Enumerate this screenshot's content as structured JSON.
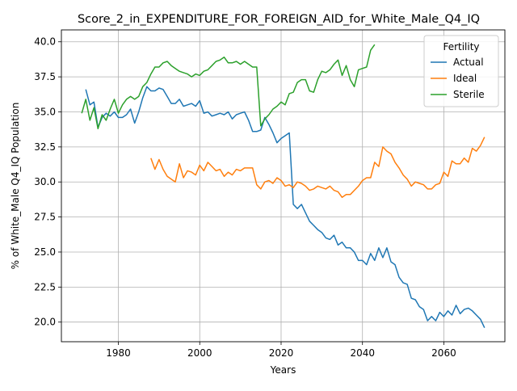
{
  "chart_data": {
    "type": "line",
    "title": "Score_2_in_EXPENDITURE_FOR_FOREIGN_AID_for_White_Male_Q4_IQ",
    "xlabel": "Years",
    "ylabel": "% of White_Male Q4_IQ Population",
    "xlim": [
      1966,
      2075
    ],
    "ylim": [
      18.6,
      40.85
    ],
    "grid": true,
    "legend": {
      "title": "Fertility",
      "placement": "top-right"
    },
    "x_ticks": [
      1980,
      2000,
      2020,
      2040,
      2060
    ],
    "x_tick_labels": [
      "1980",
      "2000",
      "2020",
      "2040",
      "2060"
    ],
    "y_ticks": [
      20.0,
      22.5,
      25.0,
      27.5,
      30.0,
      32.5,
      35.0,
      37.5,
      40.0
    ],
    "y_tick_labels": [
      "20.0",
      "22.5",
      "25.0",
      "27.5",
      "30.0",
      "32.5",
      "35.0",
      "37.5",
      "40.0"
    ],
    "series": [
      {
        "name": "Actual",
        "color": "#1f77b4",
        "x": [
          1972,
          1973,
          1974,
          1975,
          1976,
          1977,
          1978,
          1979,
          1980,
          1981,
          1982,
          1983,
          1984,
          1985,
          1986,
          1987,
          1988,
          1989,
          1990,
          1991,
          1992,
          1993,
          1994,
          1995,
          1996,
          1997,
          1998,
          1999,
          2000,
          2001,
          2002,
          2003,
          2004,
          2005,
          2006,
          2007,
          2008,
          2009,
          2010,
          2011,
          2012,
          2013,
          2014,
          2015,
          2016,
          2017,
          2018,
          2019,
          2020,
          2021,
          2022,
          2023,
          2024,
          2025,
          2026,
          2027,
          2028,
          2029,
          2030,
          2031,
          2032,
          2033,
          2034,
          2035,
          2036,
          2037,
          2038,
          2039,
          2040,
          2041,
          2042,
          2043,
          2044,
          2045,
          2046,
          2047,
          2048,
          2049,
          2050,
          2051,
          2052,
          2053,
          2054,
          2055,
          2056,
          2057,
          2058,
          2059,
          2060,
          2061,
          2062,
          2063,
          2064,
          2065,
          2066,
          2067,
          2068,
          2069,
          2070
        ],
        "values": [
          36.6,
          35.5,
          35.7,
          33.9,
          34.6,
          34.9,
          34.7,
          35.0,
          34.6,
          34.6,
          34.8,
          35.2,
          34.2,
          35.0,
          36.0,
          36.8,
          36.5,
          36.5,
          36.7,
          36.6,
          36.1,
          35.6,
          35.6,
          35.9,
          35.4,
          35.5,
          35.6,
          35.4,
          35.8,
          34.9,
          35.0,
          34.7,
          34.8,
          34.9,
          34.8,
          35.0,
          34.5,
          34.8,
          34.9,
          35.0,
          34.4,
          33.6,
          33.6,
          33.7,
          34.6,
          34.1,
          33.5,
          32.8,
          33.1,
          33.3,
          33.5,
          28.4,
          28.1,
          28.4,
          27.8,
          27.2,
          26.9,
          26.6,
          26.4,
          26.0,
          25.9,
          26.2,
          25.5,
          25.7,
          25.3,
          25.3,
          25.0,
          24.4,
          24.4,
          24.1,
          24.9,
          24.4,
          25.3,
          24.6,
          25.3,
          24.3,
          24.1,
          23.2,
          22.8,
          22.7,
          21.7,
          21.6,
          21.1,
          20.9,
          20.1,
          20.4,
          20.1,
          20.7,
          20.4,
          20.8,
          20.5,
          21.2,
          20.6,
          20.9,
          21.0,
          20.8,
          20.5,
          20.2,
          19.6
        ]
      },
      {
        "name": "Ideal",
        "color": "#ff7f0e",
        "x": [
          1988,
          1989,
          1990,
          1991,
          1992,
          1993,
          1994,
          1995,
          1996,
          1997,
          1998,
          1999,
          2000,
          2001,
          2002,
          2003,
          2004,
          2005,
          2006,
          2007,
          2008,
          2009,
          2010,
          2011,
          2012,
          2013,
          2014,
          2015,
          2016,
          2017,
          2018,
          2019,
          2020,
          2021,
          2022,
          2023,
          2024,
          2025,
          2026,
          2027,
          2028,
          2029,
          2030,
          2031,
          2032,
          2033,
          2034,
          2035,
          2036,
          2037,
          2038,
          2039,
          2040,
          2041,
          2042,
          2043,
          2044,
          2045,
          2046,
          2047,
          2048,
          2049,
          2050,
          2051,
          2052,
          2053,
          2054,
          2055,
          2056,
          2057,
          2058,
          2059,
          2060,
          2061,
          2062,
          2063,
          2064,
          2065,
          2066,
          2067,
          2068,
          2069,
          2070
        ],
        "values": [
          31.7,
          30.9,
          31.6,
          30.9,
          30.4,
          30.2,
          30.0,
          31.3,
          30.3,
          30.8,
          30.7,
          30.5,
          31.2,
          30.8,
          31.4,
          31.1,
          30.8,
          30.9,
          30.4,
          30.7,
          30.5,
          30.9,
          30.8,
          31.0,
          31.0,
          31.0,
          29.8,
          29.5,
          30.0,
          30.1,
          29.9,
          30.3,
          30.1,
          29.7,
          29.8,
          29.6,
          30.0,
          29.9,
          29.7,
          29.4,
          29.5,
          29.7,
          29.6,
          29.5,
          29.7,
          29.4,
          29.3,
          28.9,
          29.1,
          29.1,
          29.4,
          29.7,
          30.1,
          30.3,
          30.3,
          31.4,
          31.1,
          32.5,
          32.2,
          32.0,
          31.4,
          31.0,
          30.5,
          30.2,
          29.7,
          30.0,
          29.9,
          29.8,
          29.5,
          29.5,
          29.8,
          29.9,
          30.7,
          30.4,
          31.5,
          31.3,
          31.3,
          31.7,
          31.4,
          32.4,
          32.2,
          32.6,
          33.2
        ]
      },
      {
        "name": "Sterile",
        "color": "#2ca02c",
        "x": [
          1971,
          1972,
          1973,
          1974,
          1975,
          1976,
          1977,
          1978,
          1979,
          1980,
          1981,
          1982,
          1983,
          1984,
          1985,
          1986,
          1987,
          1988,
          1989,
          1990,
          1991,
          1992,
          1993,
          1994,
          1995,
          1996,
          1997,
          1998,
          1999,
          2000,
          2001,
          2002,
          2003,
          2004,
          2005,
          2006,
          2007,
          2008,
          2009,
          2010,
          2011,
          2012,
          2013,
          2014,
          2015,
          2016,
          2017,
          2018,
          2019,
          2020,
          2021,
          2022,
          2023,
          2024,
          2025,
          2026,
          2027,
          2028,
          2029,
          2030,
          2031,
          2032,
          2033,
          2034,
          2035,
          2036,
          2037,
          2038,
          2039,
          2040,
          2041,
          2042,
          2043
        ],
        "values": [
          34.9,
          35.9,
          34.4,
          35.3,
          33.8,
          34.8,
          34.4,
          35.2,
          35.9,
          34.9,
          35.5,
          35.9,
          36.1,
          35.9,
          36.1,
          36.8,
          37.1,
          37.7,
          38.2,
          38.2,
          38.5,
          38.6,
          38.3,
          38.1,
          37.9,
          37.8,
          37.7,
          37.5,
          37.7,
          37.6,
          37.9,
          38.0,
          38.3,
          38.6,
          38.7,
          38.9,
          38.5,
          38.5,
          38.6,
          38.4,
          38.6,
          38.4,
          38.2,
          38.2,
          34.0,
          34.5,
          34.8,
          35.2,
          35.4,
          35.7,
          35.5,
          36.3,
          36.4,
          37.1,
          37.3,
          37.3,
          36.5,
          36.4,
          37.3,
          37.9,
          37.8,
          38.0,
          38.4,
          38.7,
          37.6,
          38.3,
          37.3,
          36.8,
          38.0,
          38.1,
          38.2,
          39.4,
          39.8
        ]
      }
    ]
  }
}
